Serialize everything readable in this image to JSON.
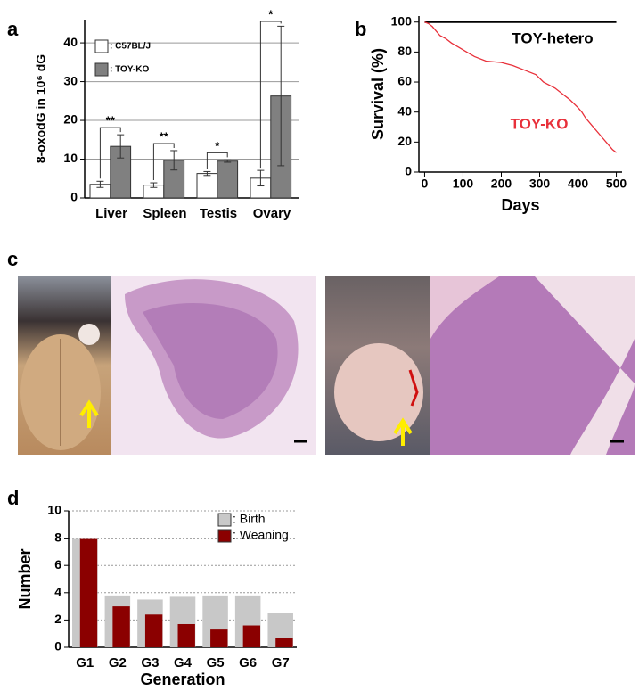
{
  "panel_labels": [
    "a",
    "b",
    "c",
    "d"
  ],
  "chart_data": [
    {
      "type": "bar",
      "barmode": "group",
      "ylabel": "8-oxodG in 10⁶ dG",
      "categories": [
        "Liver",
        "Spleen",
        "Testis",
        "Ovary"
      ],
      "series": [
        {
          "name": ": C57BL/J",
          "color": "#ffffff",
          "values": [
            3.5,
            3.3,
            6.3,
            5.1
          ],
          "errors": [
            0.8,
            0.6,
            0.5,
            2.0
          ]
        },
        {
          "name": ": TOY-KO",
          "color": "#808080",
          "values": [
            13.3,
            9.7,
            9.5,
            26.3
          ],
          "errors": [
            3.0,
            2.5,
            0.3,
            18.0
          ]
        }
      ],
      "annotations": [
        "**",
        "**",
        "*",
        "*"
      ],
      "ylim": [
        0,
        46
      ],
      "yticks": [
        0,
        10,
        20,
        30,
        40
      ],
      "grid": true,
      "legend": "upper left"
    },
    {
      "type": "line",
      "xlabel": "Days",
      "ylabel": "Survival (%)",
      "series": [
        {
          "name": "TOY-hetero",
          "color": "#000000",
          "x": [
            0,
            500
          ],
          "values": [
            100,
            100
          ]
        },
        {
          "name": "TOY-KO",
          "color": "#e8303a",
          "x": [
            0,
            10,
            20,
            30,
            40,
            55,
            70,
            90,
            110,
            130,
            160,
            200,
            230,
            260,
            290,
            310,
            340,
            360,
            380,
            400,
            410,
            420,
            440,
            460,
            480,
            490,
            500
          ],
          "values": [
            100,
            99,
            97,
            94,
            91,
            89,
            86,
            83,
            80,
            77,
            74,
            73,
            71,
            68,
            65,
            60,
            56,
            52,
            48,
            43,
            40,
            36,
            30,
            24,
            18,
            15,
            13
          ]
        }
      ],
      "xlim": [
        -15,
        515
      ],
      "xticks": [
        0,
        100,
        200,
        300,
        400,
        500
      ],
      "ylim": [
        0,
        104
      ],
      "yticks": [
        0,
        20,
        40,
        60,
        80,
        100
      ],
      "grid": false
    },
    {
      "type": "bar",
      "barmode": "overlay",
      "xlabel": "Generation",
      "ylabel": "Number",
      "categories": [
        "G1",
        "G2",
        "G3",
        "G4",
        "G5",
        "G6",
        "G7"
      ],
      "series": [
        {
          "name": ": Birth",
          "color": "#c8c8c8",
          "values": [
            8,
            3.8,
            3.5,
            3.7,
            3.8,
            3.8,
            2.5
          ]
        },
        {
          "name": ": Weaning",
          "color": "#8b0000",
          "values": [
            8,
            3.0,
            2.4,
            1.7,
            1.3,
            1.6,
            0.7
          ]
        }
      ],
      "ylim": [
        0,
        10
      ],
      "yticks": [
        0,
        2,
        4,
        6,
        8,
        10
      ],
      "grid": true,
      "legend": "upper right"
    }
  ]
}
